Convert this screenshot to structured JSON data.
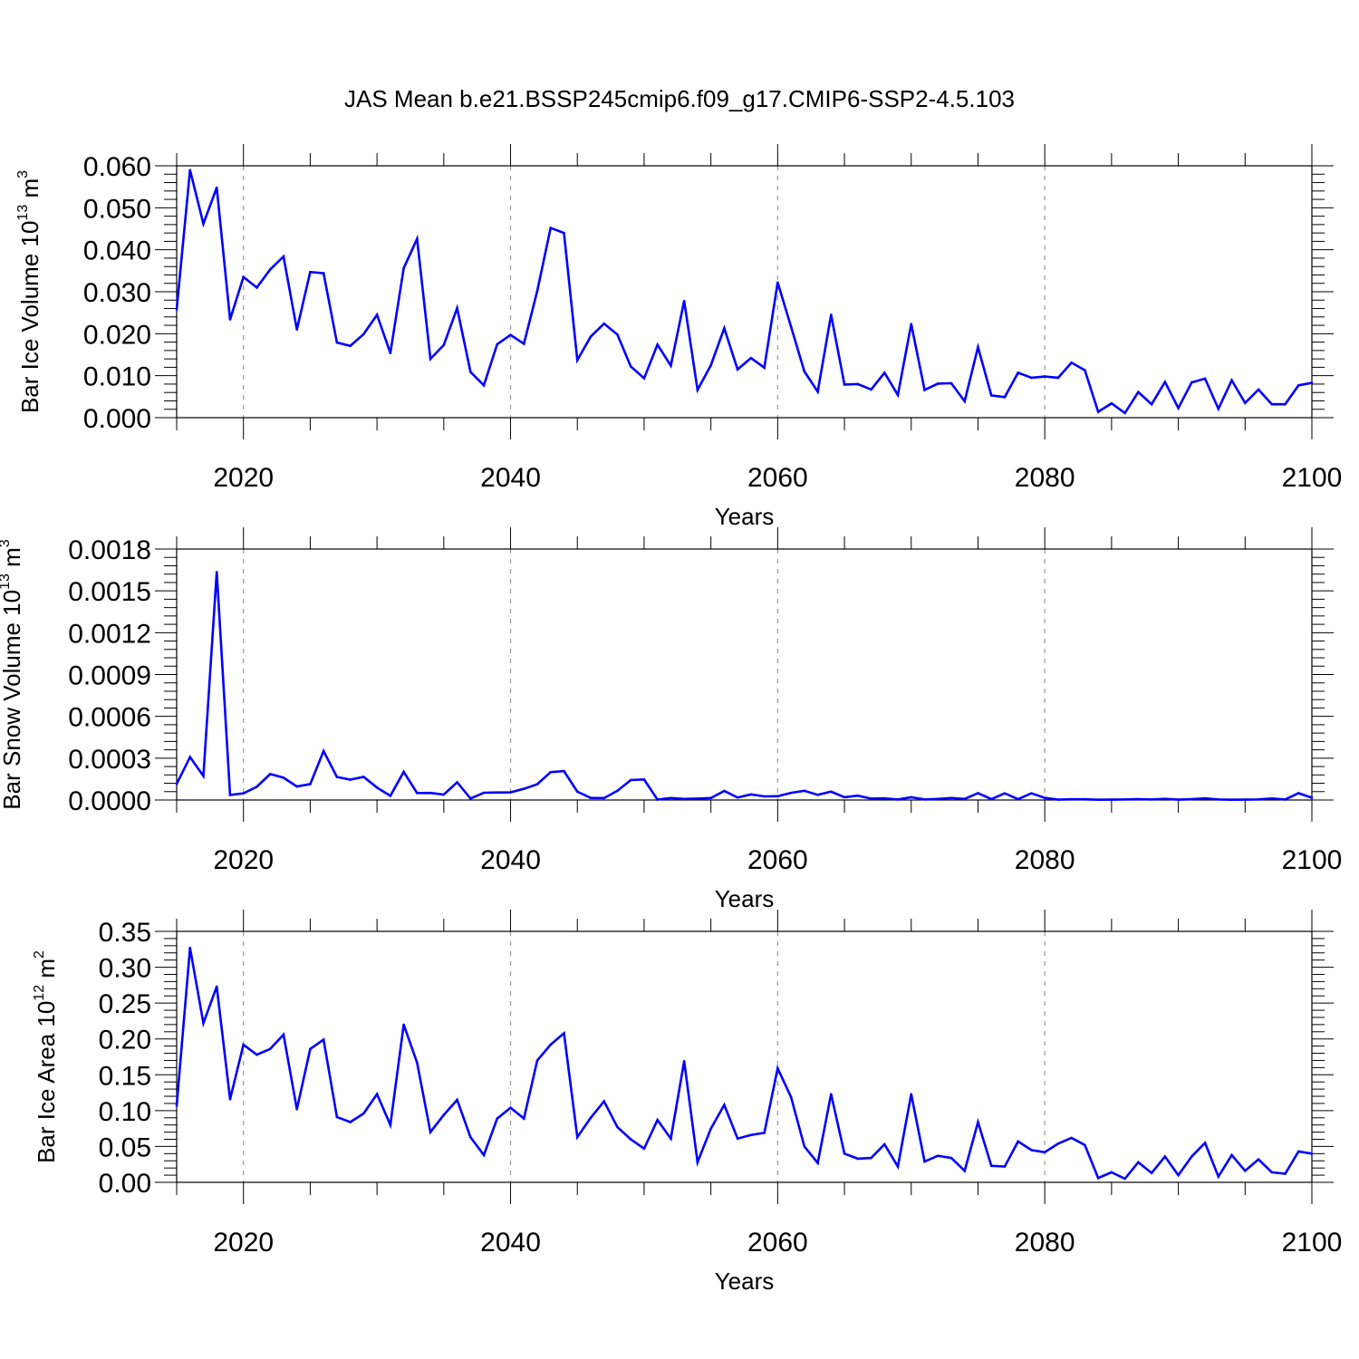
{
  "title": "JAS Mean b.e21.BSSP245cmip6.f09_g17.CMIP6-SSP2-4.5.103",
  "line_color": "#0000ff",
  "chart_data": [
    {
      "type": "line",
      "name_key": "ice_volume",
      "ylabel": {
        "text": "Bar Ice Volume 10",
        "sup": "13",
        "unit": " m",
        "unit_sup": "3"
      },
      "xlabel": "Years",
      "xlim": [
        2015,
        2100
      ],
      "ylim": [
        0.0,
        0.06
      ],
      "yticks": [
        0.0,
        0.01,
        0.02,
        0.03,
        0.04,
        0.05,
        0.06
      ],
      "ytick_labels": [
        "0.000",
        "0.010",
        "0.020",
        "0.030",
        "0.040",
        "0.050",
        "0.060"
      ],
      "xticks": [
        2020,
        2040,
        2060,
        2080,
        2100
      ],
      "xtick_labels": [
        "2020",
        "2040",
        "2060",
        "2080",
        "2100"
      ],
      "grid": "dashed vertical at major x ticks",
      "x": [
        2015,
        2016,
        2017,
        2018,
        2019,
        2020,
        2021,
        2022,
        2023,
        2024,
        2025,
        2026,
        2027,
        2028,
        2029,
        2030,
        2031,
        2032,
        2033,
        2034,
        2035,
        2036,
        2037,
        2038,
        2039,
        2040,
        2041,
        2042,
        2043,
        2044,
        2045,
        2046,
        2047,
        2048,
        2049,
        2050,
        2051,
        2052,
        2053,
        2054,
        2055,
        2056,
        2057,
        2058,
        2059,
        2060,
        2061,
        2062,
        2063,
        2064,
        2065,
        2066,
        2067,
        2068,
        2069,
        2070,
        2071,
        2072,
        2073,
        2074,
        2075,
        2076,
        2077,
        2078,
        2079,
        2080,
        2081,
        2082,
        2083,
        2084,
        2085,
        2086,
        2087,
        2088,
        2089,
        2090,
        2091,
        2092,
        2093,
        2094,
        2095,
        2096,
        2097,
        2098,
        2099,
        2100
      ],
      "y": [
        0.0258,
        0.059,
        0.0462,
        0.0548,
        0.0234,
        0.0335,
        0.031,
        0.0353,
        0.0384,
        0.021,
        0.0347,
        0.0344,
        0.0179,
        0.0171,
        0.0199,
        0.0245,
        0.0154,
        0.0356,
        0.0426,
        0.014,
        0.0173,
        0.0261,
        0.0109,
        0.0077,
        0.0175,
        0.0197,
        0.0176,
        0.0302,
        0.0452,
        0.044,
        0.0137,
        0.0193,
        0.0224,
        0.0198,
        0.0122,
        0.0094,
        0.0174,
        0.0124,
        0.0278,
        0.0066,
        0.0125,
        0.0213,
        0.0115,
        0.0142,
        0.0119,
        0.0322,
        0.0217,
        0.011,
        0.0062,
        0.0245,
        0.0079,
        0.008,
        0.0067,
        0.0107,
        0.0054,
        0.0223,
        0.0066,
        0.0081,
        0.0082,
        0.0039,
        0.0168,
        0.0053,
        0.0049,
        0.0107,
        0.0095,
        0.0098,
        0.0095,
        0.0131,
        0.0113,
        0.0014,
        0.0034,
        0.0011,
        0.0061,
        0.0032,
        0.0085,
        0.0023,
        0.0084,
        0.0093,
        0.0021,
        0.0089,
        0.0035,
        0.0067,
        0.0032,
        0.0032,
        0.0077,
        0.0083
      ]
    },
    {
      "type": "line",
      "name_key": "snow_volume",
      "ylabel": {
        "text": "Bar Snow Volume 10",
        "sup": "13",
        "unit": " m",
        "unit_sup": "3"
      },
      "xlabel": "Years",
      "xlim": [
        2015,
        2100
      ],
      "ylim": [
        0.0,
        0.0018
      ],
      "yticks": [
        0.0,
        0.0003,
        0.0006,
        0.0009,
        0.0012,
        0.0015,
        0.0018
      ],
      "ytick_labels": [
        "0.0000",
        "0.0003",
        "0.0006",
        "0.0009",
        "0.0012",
        "0.0015",
        "0.0018"
      ],
      "xticks": [
        2020,
        2040,
        2060,
        2080,
        2100
      ],
      "xtick_labels": [
        "2020",
        "2040",
        "2060",
        "2080",
        "2100"
      ],
      "grid": "dashed vertical at major x ticks",
      "x": [
        2015,
        2016,
        2017,
        2018,
        2019,
        2020,
        2021,
        2022,
        2023,
        2024,
        2025,
        2026,
        2027,
        2028,
        2029,
        2030,
        2031,
        2032,
        2033,
        2034,
        2035,
        2036,
        2037,
        2038,
        2039,
        2040,
        2041,
        2042,
        2043,
        2044,
        2045,
        2046,
        2047,
        2048,
        2049,
        2050,
        2051,
        2052,
        2053,
        2054,
        2055,
        2056,
        2057,
        2058,
        2059,
        2060,
        2061,
        2062,
        2063,
        2064,
        2065,
        2066,
        2067,
        2068,
        2069,
        2070,
        2071,
        2072,
        2073,
        2074,
        2075,
        2076,
        2077,
        2078,
        2079,
        2080,
        2081,
        2082,
        2083,
        2084,
        2085,
        2086,
        2087,
        2088,
        2089,
        2090,
        2091,
        2092,
        2093,
        2094,
        2095,
        2096,
        2097,
        2098,
        2099,
        2100
      ],
      "y": [
        0.000115,
        0.000308,
        0.000172,
        0.001635,
        3.6e-05,
        4.8e-05,
        9.5e-05,
        0.000186,
        0.00016,
        9.7e-05,
        0.000114,
        0.000351,
        0.000165,
        0.000146,
        0.000166,
        8.9e-05,
        3e-05,
        0.000202,
        5e-05,
        5.1e-05,
        3.9e-05,
        0.000127,
        1.1e-05,
        5.2e-05,
        5.4e-05,
        5.5e-05,
        8e-05,
        0.000113,
        0.0002,
        0.000207,
        6e-05,
        1.5e-05,
        1.4e-05,
        6.6e-05,
        0.000143,
        0.000147,
        3e-06,
        1.4e-05,
        8e-06,
        1e-05,
        1.4e-05,
        6.5e-05,
        1.8e-05,
        4e-05,
        2.6e-05,
        2.7e-05,
        5.1e-05,
        6.6e-05,
        3.7e-05,
        6e-05,
        2e-05,
        3.1e-05,
        1e-05,
        1.2e-05,
        4e-06,
        2e-05,
        4e-06,
        8e-06,
        1.4e-05,
        8e-06,
        4.9e-05,
        6e-06,
        4.8e-05,
        6e-06,
        4.8e-05,
        1.5e-05,
        3e-06,
        5e-06,
        5e-06,
        2e-06,
        3e-06,
        4e-06,
        6e-06,
        4e-06,
        9e-06,
        3e-06,
        6e-06,
        1.2e-05,
        4e-06,
        2e-06,
        3e-06,
        4e-06,
        1.1e-05,
        4e-06,
        4.9e-05,
        1.6e-05
      ]
    },
    {
      "type": "line",
      "name_key": "ice_area",
      "ylabel": {
        "text": "Bar Ice Area 10",
        "sup": "12",
        "unit": " m",
        "unit_sup": "2"
      },
      "xlabel": "Years",
      "xlim": [
        2015,
        2100
      ],
      "ylim": [
        0.0,
        0.35
      ],
      "yticks": [
        0.0,
        0.05,
        0.1,
        0.15,
        0.2,
        0.25,
        0.3,
        0.35
      ],
      "ytick_labels": [
        "0.00",
        "0.05",
        "0.10",
        "0.15",
        "0.20",
        "0.25",
        "0.30",
        "0.35"
      ],
      "xticks": [
        2020,
        2040,
        2060,
        2080,
        2100
      ],
      "xtick_labels": [
        "2020",
        "2040",
        "2060",
        "2080",
        "2100"
      ],
      "grid": "dashed vertical at major x ticks",
      "x": [
        2015,
        2016,
        2017,
        2018,
        2019,
        2020,
        2021,
        2022,
        2023,
        2024,
        2025,
        2026,
        2027,
        2028,
        2029,
        2030,
        2031,
        2032,
        2033,
        2034,
        2035,
        2036,
        2037,
        2038,
        2039,
        2040,
        2041,
        2042,
        2043,
        2044,
        2045,
        2046,
        2047,
        2048,
        2049,
        2050,
        2051,
        2052,
        2053,
        2054,
        2055,
        2056,
        2057,
        2058,
        2059,
        2060,
        2061,
        2062,
        2063,
        2064,
        2065,
        2066,
        2067,
        2068,
        2069,
        2070,
        2071,
        2072,
        2073,
        2074,
        2075,
        2076,
        2077,
        2078,
        2079,
        2080,
        2081,
        2082,
        2083,
        2084,
        2085,
        2086,
        2087,
        2088,
        2089,
        2090,
        2091,
        2092,
        2093,
        2094,
        2095,
        2096,
        2097,
        2098,
        2099,
        2100
      ],
      "y": [
        0.107,
        0.327,
        0.222,
        0.273,
        0.116,
        0.192,
        0.178,
        0.186,
        0.206,
        0.102,
        0.186,
        0.199,
        0.091,
        0.084,
        0.096,
        0.123,
        0.08,
        0.22,
        0.167,
        0.07,
        0.094,
        0.115,
        0.063,
        0.038,
        0.089,
        0.104,
        0.089,
        0.17,
        0.192,
        0.208,
        0.063,
        0.09,
        0.113,
        0.077,
        0.06,
        0.047,
        0.087,
        0.061,
        0.169,
        0.028,
        0.075,
        0.108,
        0.061,
        0.066,
        0.069,
        0.159,
        0.119,
        0.05,
        0.027,
        0.123,
        0.04,
        0.033,
        0.034,
        0.053,
        0.022,
        0.123,
        0.029,
        0.037,
        0.034,
        0.016,
        0.084,
        0.023,
        0.022,
        0.057,
        0.045,
        0.042,
        0.054,
        0.062,
        0.052,
        0.006,
        0.014,
        0.005,
        0.028,
        0.013,
        0.036,
        0.01,
        0.036,
        0.055,
        0.008,
        0.038,
        0.016,
        0.032,
        0.014,
        0.012,
        0.043,
        0.04
      ]
    }
  ]
}
